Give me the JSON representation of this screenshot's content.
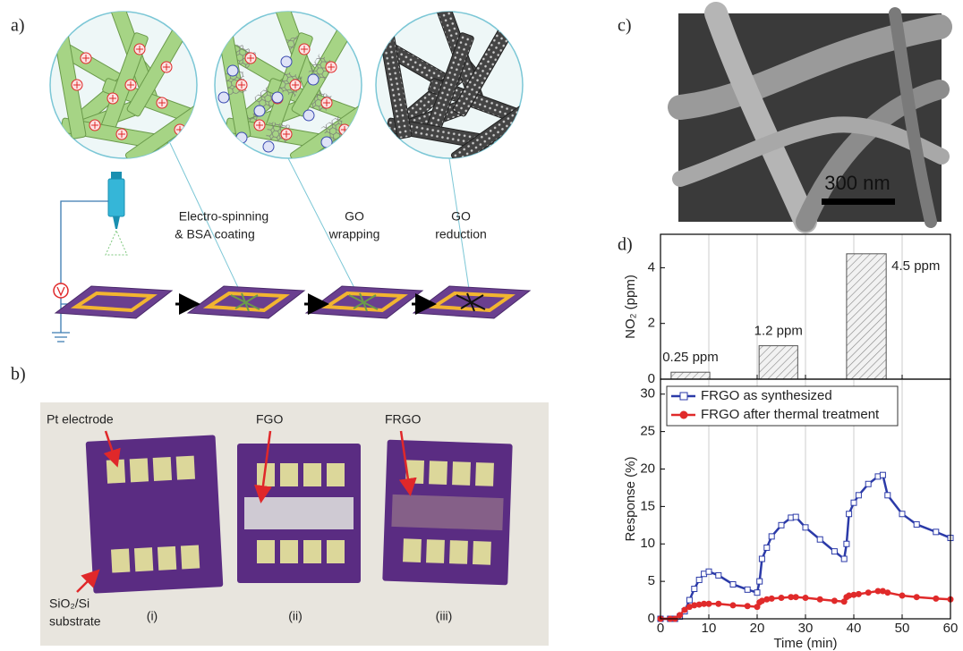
{
  "panels": {
    "a": {
      "label": "a)",
      "steps": [
        [
          "Electro-spinning",
          "& BSA coating"
        ],
        [
          "GO",
          "wrapping"
        ],
        [
          "GO",
          "reduction"
        ]
      ]
    },
    "b": {
      "label": "b)",
      "annotations": [
        "Pt electrode",
        "FGO",
        "FRGO"
      ],
      "substrate": [
        "SiO₂/Si",
        "substrate"
      ],
      "samples": [
        "(i)",
        "(ii)",
        "(iii)"
      ]
    },
    "c": {
      "label": "c)",
      "scale_bar": "300 nm"
    },
    "d": {
      "label": "d)"
    }
  },
  "chart_data": [
    {
      "type": "bar",
      "ylabel": "NO₂ (ppm)",
      "intervals": [
        [
          2.2,
          10.2
        ],
        [
          20.4,
          28.4
        ],
        [
          38.5,
          46.7
        ]
      ],
      "values": [
        0.25,
        1.2,
        4.5
      ],
      "value_labels": [
        "0.25 ppm",
        "1.2 ppm",
        "4.5 ppm"
      ],
      "xlim": [
        0,
        60
      ],
      "xticks": [
        0,
        10,
        20,
        30,
        40,
        50,
        60
      ],
      "ylim": [
        0,
        5.2
      ],
      "yticks": [
        0,
        2,
        4
      ],
      "grid": "x",
      "color": "#f2f2f2"
    },
    {
      "type": "line",
      "xlabel": "Time (min)",
      "ylabel": "Response (%)",
      "xlim": [
        0,
        60
      ],
      "xticks": [
        0,
        10,
        20,
        30,
        40,
        50,
        60
      ],
      "ylim": [
        0,
        32
      ],
      "yticks": [
        0,
        5,
        10,
        15,
        20,
        25,
        30
      ],
      "grid": "x",
      "legend": "upper left",
      "x": [
        0,
        2,
        3,
        4,
        5,
        6,
        7,
        8,
        9,
        10,
        12,
        15,
        18,
        20,
        20.5,
        21,
        22,
        23,
        25,
        27,
        28,
        30,
        33,
        36,
        38,
        38.5,
        39,
        40,
        41,
        43,
        45,
        46,
        47,
        50,
        53,
        57,
        60
      ],
      "series": [
        {
          "name": "FRGO as synthesized",
          "color": "#2b3aa8",
          "marker": "square",
          "values": [
            0,
            0,
            0,
            0.3,
            1,
            2.5,
            4,
            5.2,
            6,
            6.3,
            5.8,
            4.6,
            3.9,
            3.5,
            5,
            8,
            9.5,
            11,
            12.5,
            13.5,
            13.6,
            12.2,
            10.6,
            9,
            8,
            10,
            14,
            15.5,
            16.5,
            18,
            19,
            19.2,
            16.5,
            14,
            12.6,
            11.6,
            10.8
          ]
        },
        {
          "name": "FRGO after thermal treatment",
          "color": "#e02a2a",
          "marker": "circle",
          "values": [
            0,
            0,
            0,
            0.5,
            1.2,
            1.6,
            1.8,
            1.9,
            2,
            2,
            2,
            1.8,
            1.7,
            1.6,
            2.2,
            2.4,
            2.6,
            2.7,
            2.8,
            2.9,
            2.9,
            2.8,
            2.6,
            2.4,
            2.3,
            2.9,
            3.1,
            3.2,
            3.3,
            3.5,
            3.7,
            3.7,
            3.5,
            3.1,
            2.9,
            2.7,
            2.6
          ]
        }
      ]
    }
  ]
}
